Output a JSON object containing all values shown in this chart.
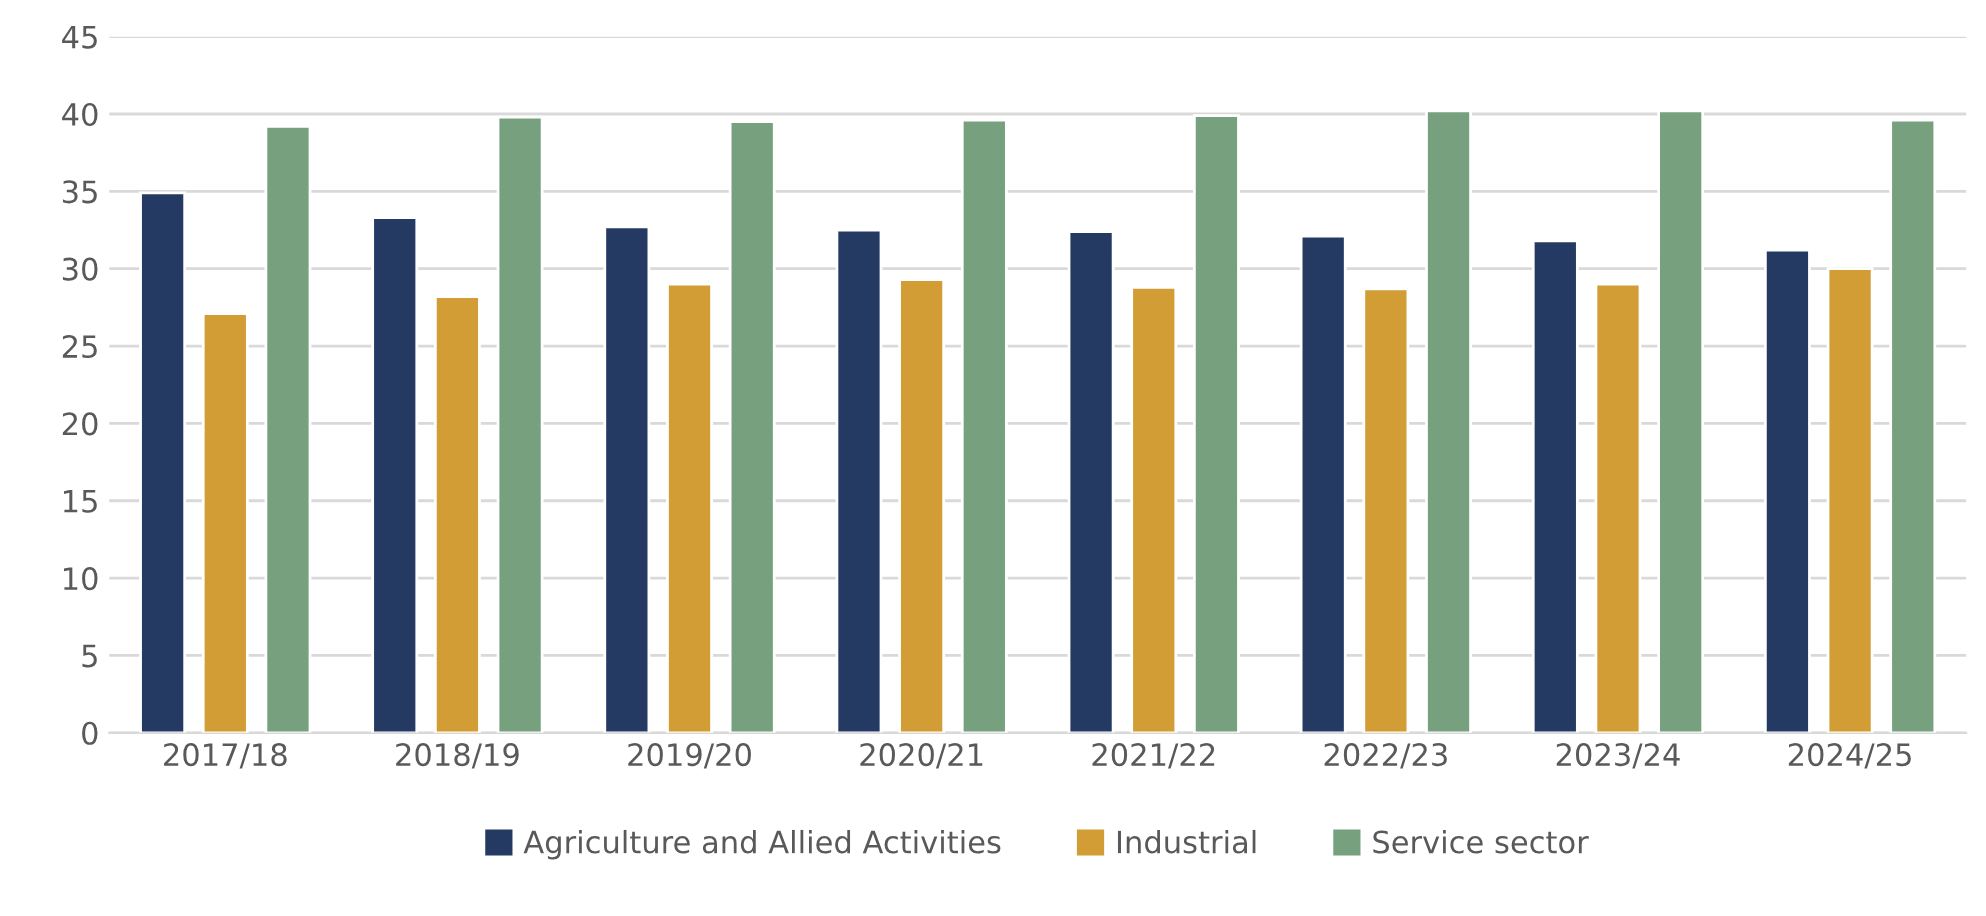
{
  "chart_data": {
    "type": "bar",
    "categories": [
      "2017/18",
      "2018/19",
      "2019/20",
      "2020/21",
      "2021/22",
      "2022/23",
      "2023/24",
      "2024/25"
    ],
    "series": [
      {
        "name": "Agriculture and Allied Activities",
        "color": "#253a63",
        "values": [
          34.9,
          33.3,
          32.7,
          32.5,
          32.4,
          32.1,
          31.8,
          31.2
        ]
      },
      {
        "name": "Industrial",
        "color": "#d29d35",
        "values": [
          27.1,
          28.2,
          29.0,
          29.3,
          28.8,
          28.7,
          29.0,
          30.0
        ]
      },
      {
        "name": "Service sector",
        "color": "#76a07e",
        "values": [
          39.2,
          39.8,
          39.5,
          39.6,
          39.9,
          40.2,
          40.2,
          39.6
        ]
      }
    ],
    "ylim": [
      0,
      45
    ],
    "yticks": [
      0,
      5,
      10,
      15,
      20,
      25,
      30,
      35,
      40,
      45
    ],
    "grid": "y",
    "legend": "bottom"
  }
}
